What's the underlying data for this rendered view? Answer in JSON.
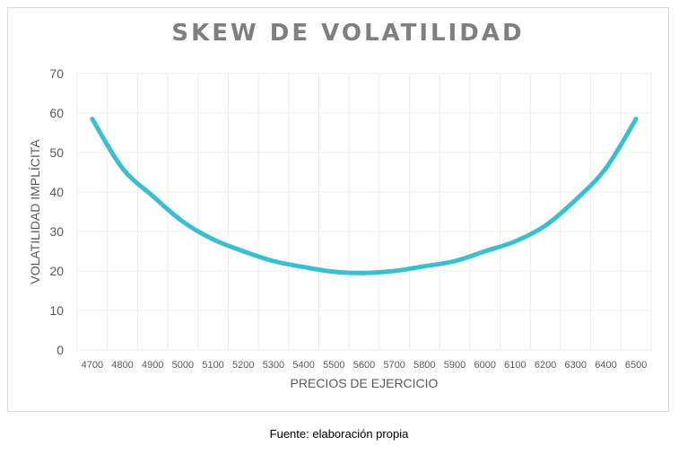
{
  "chart_data": {
    "type": "line",
    "title": "SKEW DE VOLATILIDAD",
    "xlabel": "PRECIOS DE EJERCICIO",
    "ylabel": "VOLATILIDAD IMPLÍCITA",
    "x": [
      4700,
      4800,
      4900,
      5000,
      5100,
      5200,
      5300,
      5400,
      5500,
      5600,
      5700,
      5800,
      5900,
      6000,
      6100,
      6200,
      6300,
      6400,
      6500
    ],
    "series": [
      {
        "values": [
          58.5,
          46,
          39,
          32.5,
          28,
          25,
          22.5,
          21,
          19.8,
          19.5,
          20,
          21.2,
          22.5,
          25,
          27.5,
          31.5,
          38,
          46,
          58.5
        ]
      }
    ],
    "xticks": [
      "4700",
      "4800",
      "4900",
      "5000",
      "5100",
      "5200",
      "5300",
      "5400",
      "5500",
      "5600",
      "5700",
      "5800",
      "5900",
      "6000",
      "6100",
      "6200",
      "6300",
      "6400",
      "6500"
    ],
    "yticks": [
      "0",
      "10",
      "20",
      "30",
      "40",
      "50",
      "60",
      "70"
    ],
    "ylim": [
      0,
      70
    ],
    "grid": true,
    "legend": "none",
    "line_color": "#3bbfd0",
    "grid_color": "#ececec"
  },
  "source_note": "Fuente: elaboración propia"
}
